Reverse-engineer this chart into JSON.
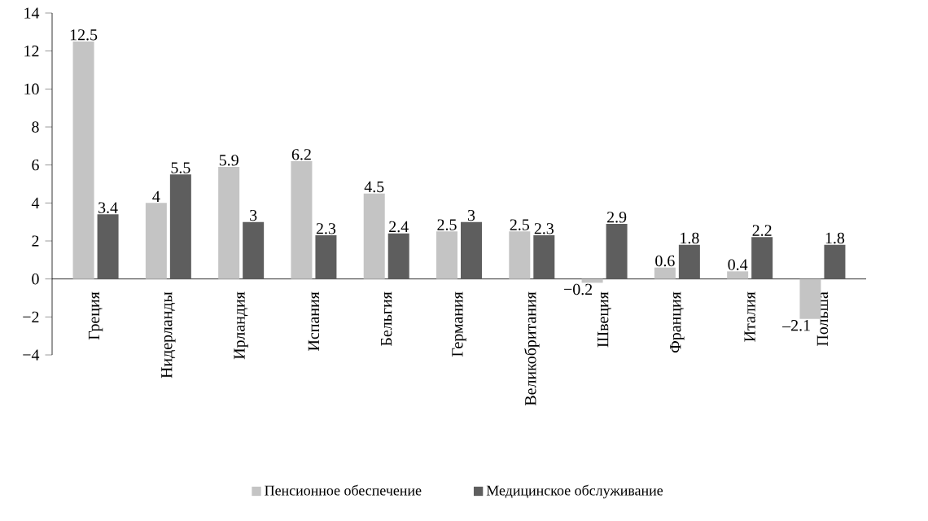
{
  "chart_data": {
    "type": "bar",
    "categories": [
      "Греция",
      "Нидерланды",
      "Ирландия",
      "Испания",
      "Бельгия",
      "Германия",
      "Великобритания",
      "Швеция",
      "Франция",
      "Италия",
      "Польша"
    ],
    "series": [
      {
        "name": "Пенсионное обеспечение",
        "color": "#c4c4c4",
        "values": [
          12.5,
          4,
          5.9,
          6.2,
          4.5,
          2.5,
          2.5,
          -0.2,
          0.6,
          0.4,
          -2.1
        ],
        "value_labels": [
          "12.5",
          "4",
          "5.9",
          "6.2",
          "4.5",
          "2.5",
          "2.5",
          "−0.2",
          "0.6",
          "0.4",
          "–2.1"
        ]
      },
      {
        "name": "Медицинское обслуживание",
        "color": "#5e5e5e",
        "values": [
          3.4,
          5.5,
          3,
          2.3,
          2.4,
          3,
          2.3,
          2.9,
          1.8,
          2.2,
          1.8
        ],
        "value_labels": [
          "3.4",
          "5.5",
          "3",
          "2.3",
          "2.4",
          "3",
          "2.3",
          "2.9",
          "1.8",
          "2.2",
          "1.8"
        ]
      }
    ],
    "ylim": [
      -4,
      14
    ],
    "yticks": [
      {
        "value": -4,
        "label": "−4"
      },
      {
        "value": -2,
        "label": "−2"
      },
      0,
      2,
      4,
      6,
      8,
      10,
      12,
      14
    ],
    "grid": false,
    "legend": "bottom"
  }
}
